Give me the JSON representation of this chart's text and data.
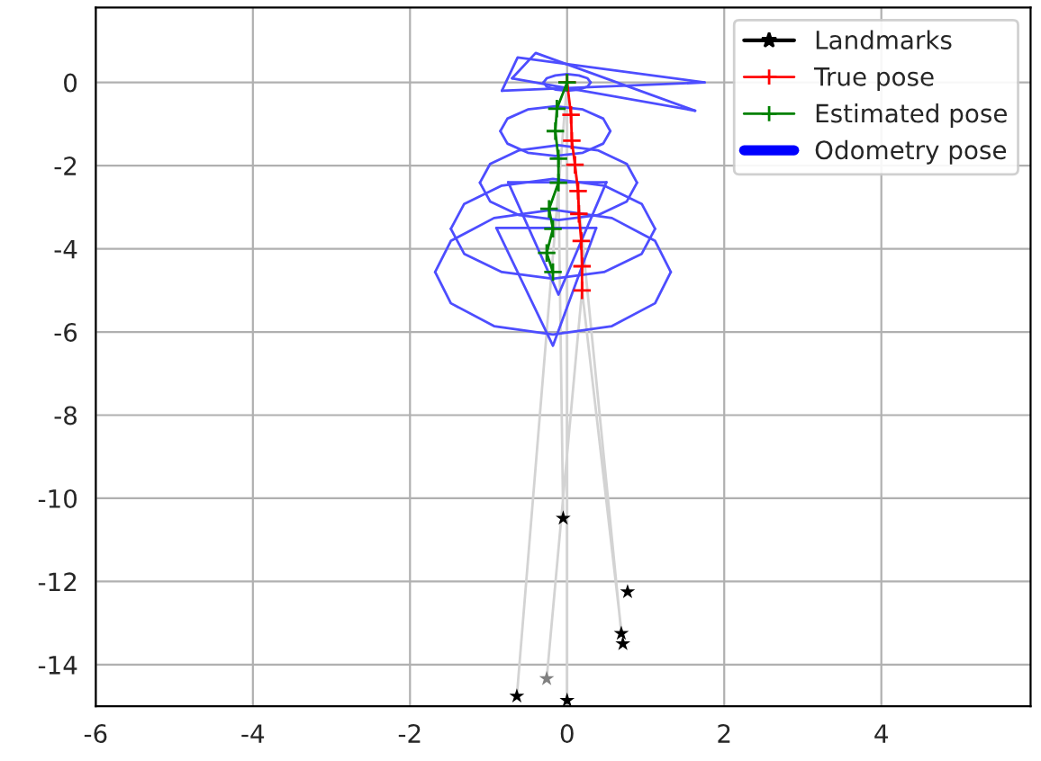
{
  "chart_data": {
    "type": "line",
    "xlim": [
      -6,
      5.9
    ],
    "ylim": [
      -15,
      1.8
    ],
    "xticks": [
      -6,
      -4,
      -2,
      0,
      2,
      4
    ],
    "yticks": [
      0,
      -2,
      -4,
      -6,
      -8,
      -10,
      -12,
      -14
    ],
    "grid": true,
    "legend": "top right",
    "series": [
      {
        "color": "#d3d3d3",
        "x": [
          0,
          -0.64,
          null,
          0.19,
          0.71,
          null,
          0,
          0.0,
          null,
          0.19,
          -0.26,
          null,
          0.1,
          0.69,
          null,
          -0.11,
          -0.05
        ],
        "values": [
          0,
          -14.76,
          null,
          -5.0,
          -13.5,
          null,
          0,
          -14.86,
          null,
          -5.0,
          -14.34,
          null,
          -1.98,
          -13.25,
          null,
          -2.41,
          -10.48
        ]
      },
      {
        "color": "#4d4dff",
        "x": [
          0.3,
          0.26,
          0.15,
          0,
          -0.15,
          -0.26,
          -0.3
        ],
        "values": [
          0,
          0.1,
          0.17,
          0.2,
          0.17,
          0.1,
          0
        ]
      },
      {
        "color": "#4d4dff",
        "x": [
          -0.3,
          -0.26,
          -0.15,
          0,
          0.15,
          0.26,
          0.3
        ],
        "values": [
          0,
          -0.1,
          -0.17,
          -0.2,
          -0.17,
          -0.1,
          0
        ]
      },
      {
        "color": "#4d4dff",
        "x": [
          0.55,
          0.46,
          0.2,
          -0.15,
          -0.5,
          -0.76,
          -0.85
        ],
        "values": [
          -1.17,
          -0.87,
          -0.65,
          -0.57,
          -0.65,
          -0.87,
          -1.17
        ]
      },
      {
        "color": "#4d4dff",
        "x": [
          -0.85,
          -0.76,
          -0.5,
          -0.15,
          0.2,
          0.46,
          0.55
        ],
        "values": [
          -1.17,
          -1.47,
          -1.69,
          -1.77,
          -1.69,
          -1.47,
          -1.17
        ]
      },
      {
        "color": "#4d4dff",
        "x": [
          0.89,
          0.76,
          0.39,
          -0.11,
          -0.61,
          -0.98,
          -1.11
        ],
        "values": [
          -2.41,
          -1.96,
          -1.63,
          -1.51,
          -1.63,
          -1.96,
          -2.41
        ]
      },
      {
        "color": "#4d4dff",
        "x": [
          -1.11,
          -0.98,
          -0.61,
          -0.11,
          0.39,
          0.76,
          0.89
        ],
        "values": [
          -2.41,
          -2.86,
          -3.19,
          -3.31,
          -3.19,
          -2.86,
          -2.41
        ]
      },
      {
        "color": "#4d4dff",
        "x": [
          1.12,
          0.95,
          0.47,
          -0.18,
          -0.83,
          -1.31,
          -1.48
        ],
        "values": [
          -3.52,
          -2.92,
          -2.48,
          -2.32,
          -2.48,
          -2.92,
          -3.52
        ]
      },
      {
        "color": "#4d4dff",
        "x": [
          -1.48,
          -1.31,
          -0.83,
          -0.18,
          0.47,
          0.95,
          1.12
        ],
        "values": [
          -3.52,
          -4.12,
          -4.56,
          -4.72,
          -4.56,
          -4.12,
          -3.52
        ]
      },
      {
        "color": "#4d4dff",
        "x": [
          1.32,
          1.12,
          0.57,
          -0.18,
          -0.93,
          -1.48,
          -1.68
        ],
        "values": [
          -4.56,
          -3.81,
          -3.26,
          -3.06,
          -3.26,
          -3.81,
          -4.56
        ]
      },
      {
        "color": "#4d4dff",
        "x": [
          -1.68,
          -1.48,
          -0.93,
          -0.18,
          0.57,
          1.12,
          1.32
        ],
        "values": [
          -4.56,
          -5.31,
          -5.86,
          -6.06,
          -5.86,
          -5.31,
          -4.56
        ]
      },
      {
        "color": "#4d4dff",
        "x": [
          -0.83,
          -0.63,
          1.75
        ],
        "values": [
          -0.2,
          0.6,
          0
        ]
      },
      {
        "color": "#4d4dff",
        "x": [
          -0.83,
          1.75
        ],
        "values": [
          -0.2,
          0
        ]
      },
      {
        "color": "#4d4dff",
        "x": [
          -0.7,
          -0.4,
          1.63
        ],
        "values": [
          0.1,
          0.71,
          -0.68
        ]
      },
      {
        "color": "#4d4dff",
        "x": [
          -0.7,
          1.63
        ],
        "values": [
          0.1,
          -0.68
        ]
      },
      {
        "color": "#4d4dff",
        "x": [
          -0.75,
          -0.11,
          0.5
        ],
        "values": [
          -2.4,
          -5.1,
          -2.4
        ]
      },
      {
        "color": "#4d4dff",
        "x": [
          -0.75,
          0.5
        ],
        "values": [
          -2.4,
          -2.4
        ]
      },
      {
        "color": "#4d4dff",
        "x": [
          -0.9,
          -0.18,
          0.37
        ],
        "values": [
          -3.5,
          -6.33,
          -3.5
        ]
      },
      {
        "color": "#4d4dff",
        "x": [
          -0.9,
          0.37
        ],
        "values": [
          -3.5,
          -3.5
        ]
      },
      {
        "name": "Landmarks",
        "type": "scatter",
        "marker": "star",
        "color": "#000000",
        "x": [
          -0.05,
          0.77,
          0.69,
          0.71,
          -0.26,
          -0.64,
          0.0
        ],
        "values": [
          -10.48,
          -12.25,
          -13.25,
          -13.5,
          -14.34,
          -14.76,
          -14.86
        ],
        "colors": [
          "#000000",
          "#000000",
          "#000000",
          "#000000",
          "#808080",
          "#000000",
          "#000000"
        ]
      },
      {
        "name": "True pose",
        "marker": "cross",
        "color": "#ff0000",
        "x": [
          0,
          0.05,
          0.06,
          0.1,
          0.14,
          0.15,
          0.18,
          0.19,
          0.19
        ],
        "values": [
          0,
          -0.78,
          -1.4,
          -1.98,
          -2.61,
          -3.16,
          -3.81,
          -4.42,
          -5.0
        ]
      },
      {
        "name": "Estimated pose",
        "marker": "cross",
        "color": "#008000",
        "x": [
          0,
          -0.13,
          -0.15,
          -0.11,
          -0.11,
          -0.23,
          -0.18,
          -0.26,
          -0.18
        ],
        "values": [
          0,
          -0.63,
          -1.17,
          -1.83,
          -2.41,
          -3.04,
          -3.52,
          -4.1,
          -4.56
        ]
      },
      {
        "name": "Odometry pose",
        "type": "line",
        "color": "#0000ff"
      }
    ]
  }
}
